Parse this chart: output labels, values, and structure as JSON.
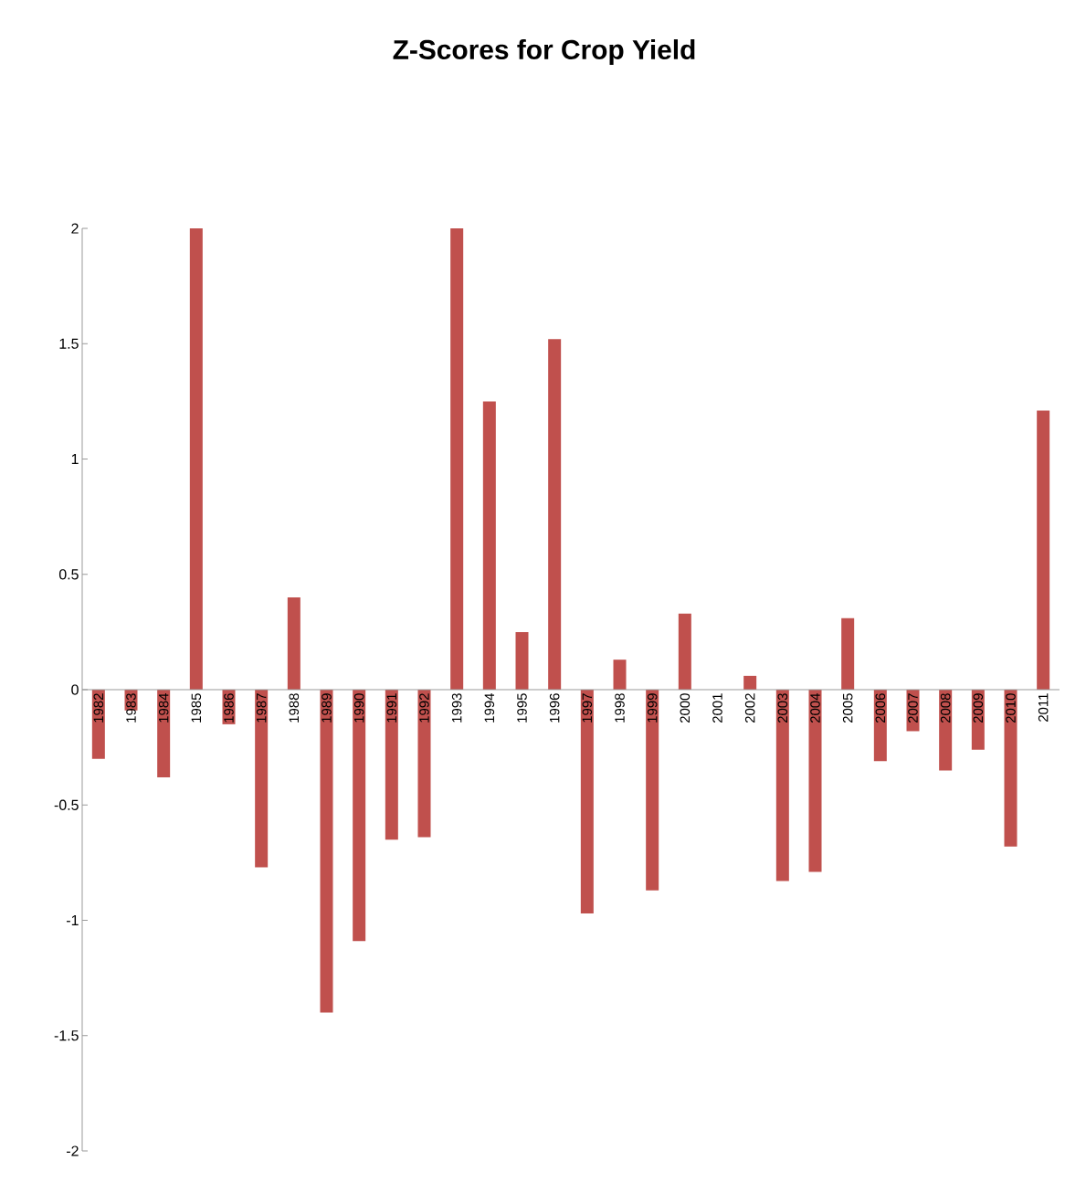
{
  "chart_data": {
    "type": "bar",
    "title": "Z-Scores for Crop Yield",
    "categories": [
      "1982",
      "1983",
      "1984",
      "1985",
      "1986",
      "1987",
      "1988",
      "1989",
      "1990",
      "1991",
      "1992",
      "1993",
      "1994",
      "1995",
      "1996",
      "1997",
      "1998",
      "1999",
      "2000",
      "2001",
      "2002",
      "2003",
      "2004",
      "2005",
      "2006",
      "2007",
      "2008",
      "2009",
      "2010",
      "2011"
    ],
    "values": [
      -0.3,
      -0.09,
      -0.38,
      2.0,
      -0.15,
      -0.77,
      0.4,
      -1.4,
      -1.09,
      -0.65,
      -0.64,
      2.0,
      1.25,
      0.25,
      1.52,
      -0.97,
      0.13,
      -0.87,
      0.33,
      0.0,
      0.06,
      -0.83,
      -0.79,
      0.31,
      -0.31,
      -0.18,
      -0.35,
      -0.26,
      -0.68,
      1.21
    ],
    "color": "#c0504d",
    "ylim": [
      -2,
      2
    ],
    "yticks": [
      -2,
      -1.5,
      -1,
      -0.5,
      0,
      0.5,
      1,
      1.5,
      2
    ],
    "grid": false
  }
}
